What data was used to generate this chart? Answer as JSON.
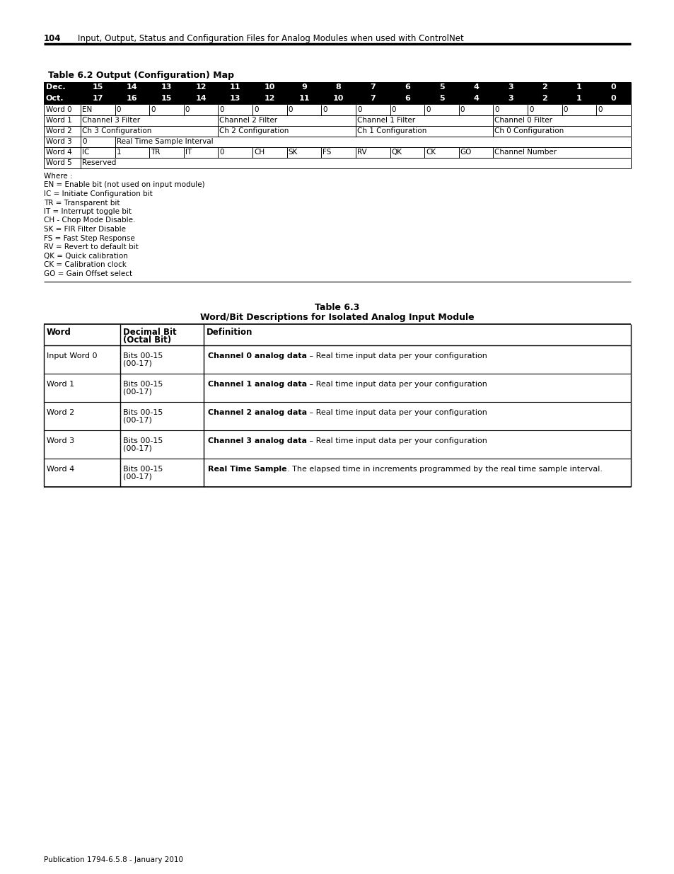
{
  "page_num": "104",
  "header_text": "Input, Output, Status and Configuration Files for Analog Modules when used with ControlNet",
  "footer_text": "Publication 1794-6.5.8 - January 2010",
  "table1_title": "Table 6.2 Output (Configuration) Map",
  "table1_header_row1": [
    "Dec.",
    "15",
    "14",
    "13",
    "12",
    "11",
    "10",
    "9",
    "8",
    "7",
    "6",
    "5",
    "4",
    "3",
    "2",
    "1",
    "0"
  ],
  "table1_header_row2": [
    "Oct.",
    "17",
    "16",
    "15",
    "14",
    "13",
    "12",
    "11",
    "10",
    "7",
    "6",
    "5",
    "4",
    "3",
    "2",
    "1",
    "0"
  ],
  "table1_notes": [
    "Where :",
    "EN = Enable bit (not used on input module)",
    "IC = Initiate Configuration bit",
    "TR = Transparent bit",
    "IT = Interrupt toggle bit",
    "CH - Chop Mode Disable.",
    "SK = FIR Filter Disable",
    "FS = Fast Step Response",
    "RV = Revert to default bit",
    "QK = Quick calibration",
    "CK = Calibration clock",
    "GO = Gain Offset select"
  ],
  "table2_title1": "Table 6.3",
  "table2_title2": "Word/Bit Descriptions for Isolated Analog Input Module",
  "table2_rows": [
    {
      "word": "Input Word 0",
      "bit": "Bits 00-15\n(00-17)",
      "def_bold": "Channel 0 analog data",
      "def_sep": " – ",
      "def_rest": "Real time input data per your configuration"
    },
    {
      "word": "Word 1",
      "bit": "Bits 00-15\n(00-17)",
      "def_bold": "Channel 1 analog data",
      "def_sep": " – ",
      "def_rest": "Real time input data per your configuration"
    },
    {
      "word": "Word 2",
      "bit": "Bits 00-15\n(00-17)",
      "def_bold": "Channel 2 analog data",
      "def_sep": " – ",
      "def_rest": "Real time input data per your configuration"
    },
    {
      "word": "Word 3",
      "bit": "Bits 00-15\n(00-17)",
      "def_bold": "Channel 3 analog data",
      "def_sep": " – ",
      "def_rest": "Real time input data per your configuration"
    },
    {
      "word": "Word 4",
      "bit": "Bits 00-15\n(00-17)",
      "def_bold": "Real Time Sample",
      "def_sep": ". ",
      "def_rest": "The elapsed time in increments programmed by the real time sample interval."
    }
  ],
  "bg_color": "#ffffff"
}
